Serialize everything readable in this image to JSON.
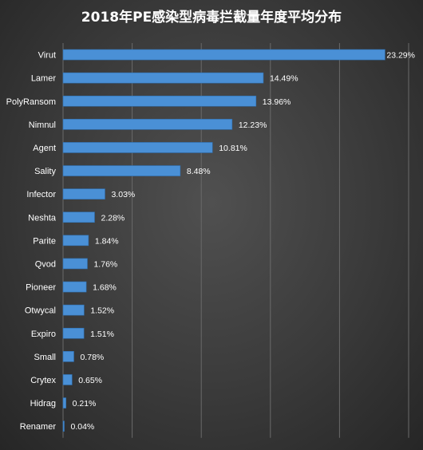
{
  "chart_data": {
    "type": "bar",
    "orientation": "horizontal",
    "title": "2018年PE感染型病毒拦截量年度平均分布",
    "categories": [
      "Virut",
      "Lamer",
      "PolyRansom",
      "Nimnul",
      "Agent",
      "Sality",
      "Infector",
      "Neshta",
      "Parite",
      "Qvod",
      "Pioneer",
      "Otwycal",
      "Expiro",
      "Small",
      "Crytex",
      "Hidrag",
      "Renamer"
    ],
    "values": [
      23.29,
      14.49,
      13.96,
      12.23,
      10.81,
      8.48,
      3.03,
      2.28,
      1.84,
      1.76,
      1.68,
      1.52,
      1.51,
      0.78,
      0.65,
      0.21,
      0.04
    ],
    "value_labels": [
      "23.29%",
      "14.49%",
      "13.96%",
      "12.23%",
      "10.81%",
      "8.48%",
      "3.03%",
      "2.28%",
      "1.84%",
      "1.76%",
      "1.68%",
      "1.52%",
      "1.51%",
      "0.78%",
      "0.65%",
      "0.21%",
      "0.04%"
    ],
    "xlim": [
      0,
      25
    ],
    "grid": true,
    "colors": {
      "bar": "#4a90d6",
      "bar_edge": "#2f6fb0",
      "gridline": "#6a6a6a",
      "text": "#ffffff"
    }
  }
}
